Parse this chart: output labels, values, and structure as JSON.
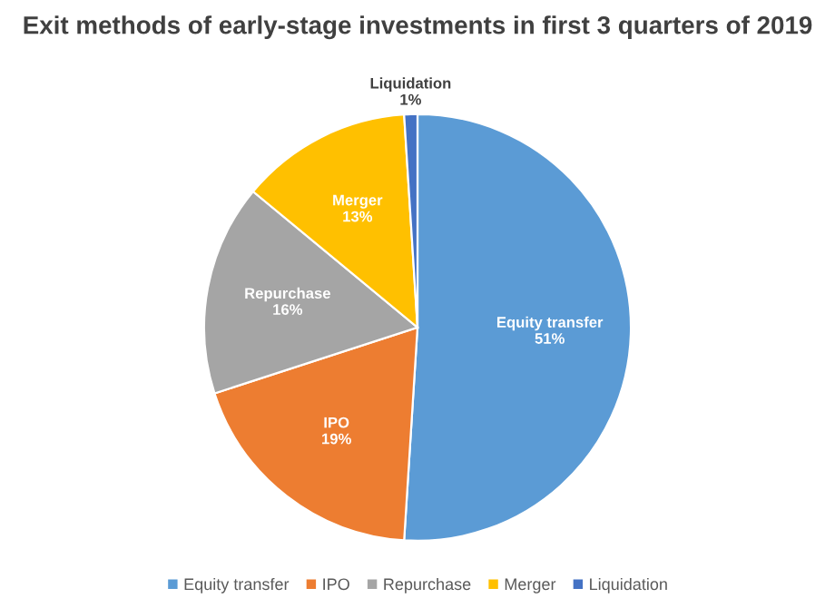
{
  "chart_data": {
    "type": "pie",
    "title": "Exit methods of early-stage investments in first 3 quarters of 2019",
    "categories": [
      "Equity transfer",
      "IPO",
      "Repurchase",
      "Merger",
      "Liquidation"
    ],
    "values": [
      51,
      19,
      16,
      13,
      1
    ],
    "value_labels": [
      "51%",
      "19%",
      "16%",
      "13%",
      "1%"
    ],
    "colors": [
      "#5b9bd5",
      "#ed7d31",
      "#a5a5a5",
      "#ffc000",
      "#4472c4"
    ],
    "legend": "bottom"
  }
}
